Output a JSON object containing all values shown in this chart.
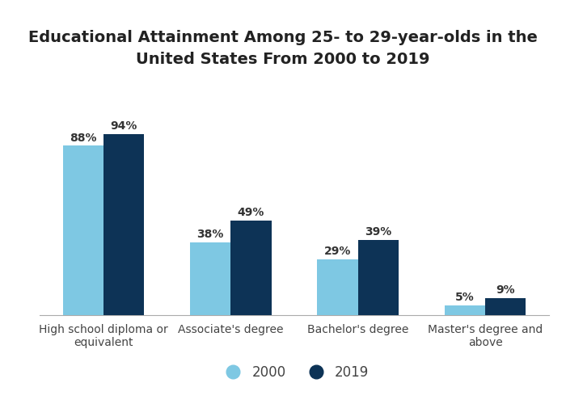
{
  "title": "Educational Attainment Among 25- to 29-year-olds in the\nUnited States From 2000 to 2019",
  "categories": [
    "High school diploma or\nequivalent",
    "Associate's degree",
    "Bachelor's degree",
    "Master's degree and\nabove"
  ],
  "values_2000": [
    88,
    38,
    29,
    5
  ],
  "values_2019": [
    94,
    49,
    39,
    9
  ],
  "color_2000": "#7EC8E3",
  "color_2019": "#0D3356",
  "bar_width": 0.32,
  "ylim": [
    0,
    105
  ],
  "legend_labels": [
    "2000",
    "2019"
  ],
  "background_color": "#ffffff",
  "title_fontsize": 14,
  "label_fontsize": 10,
  "annotation_fontsize": 10
}
